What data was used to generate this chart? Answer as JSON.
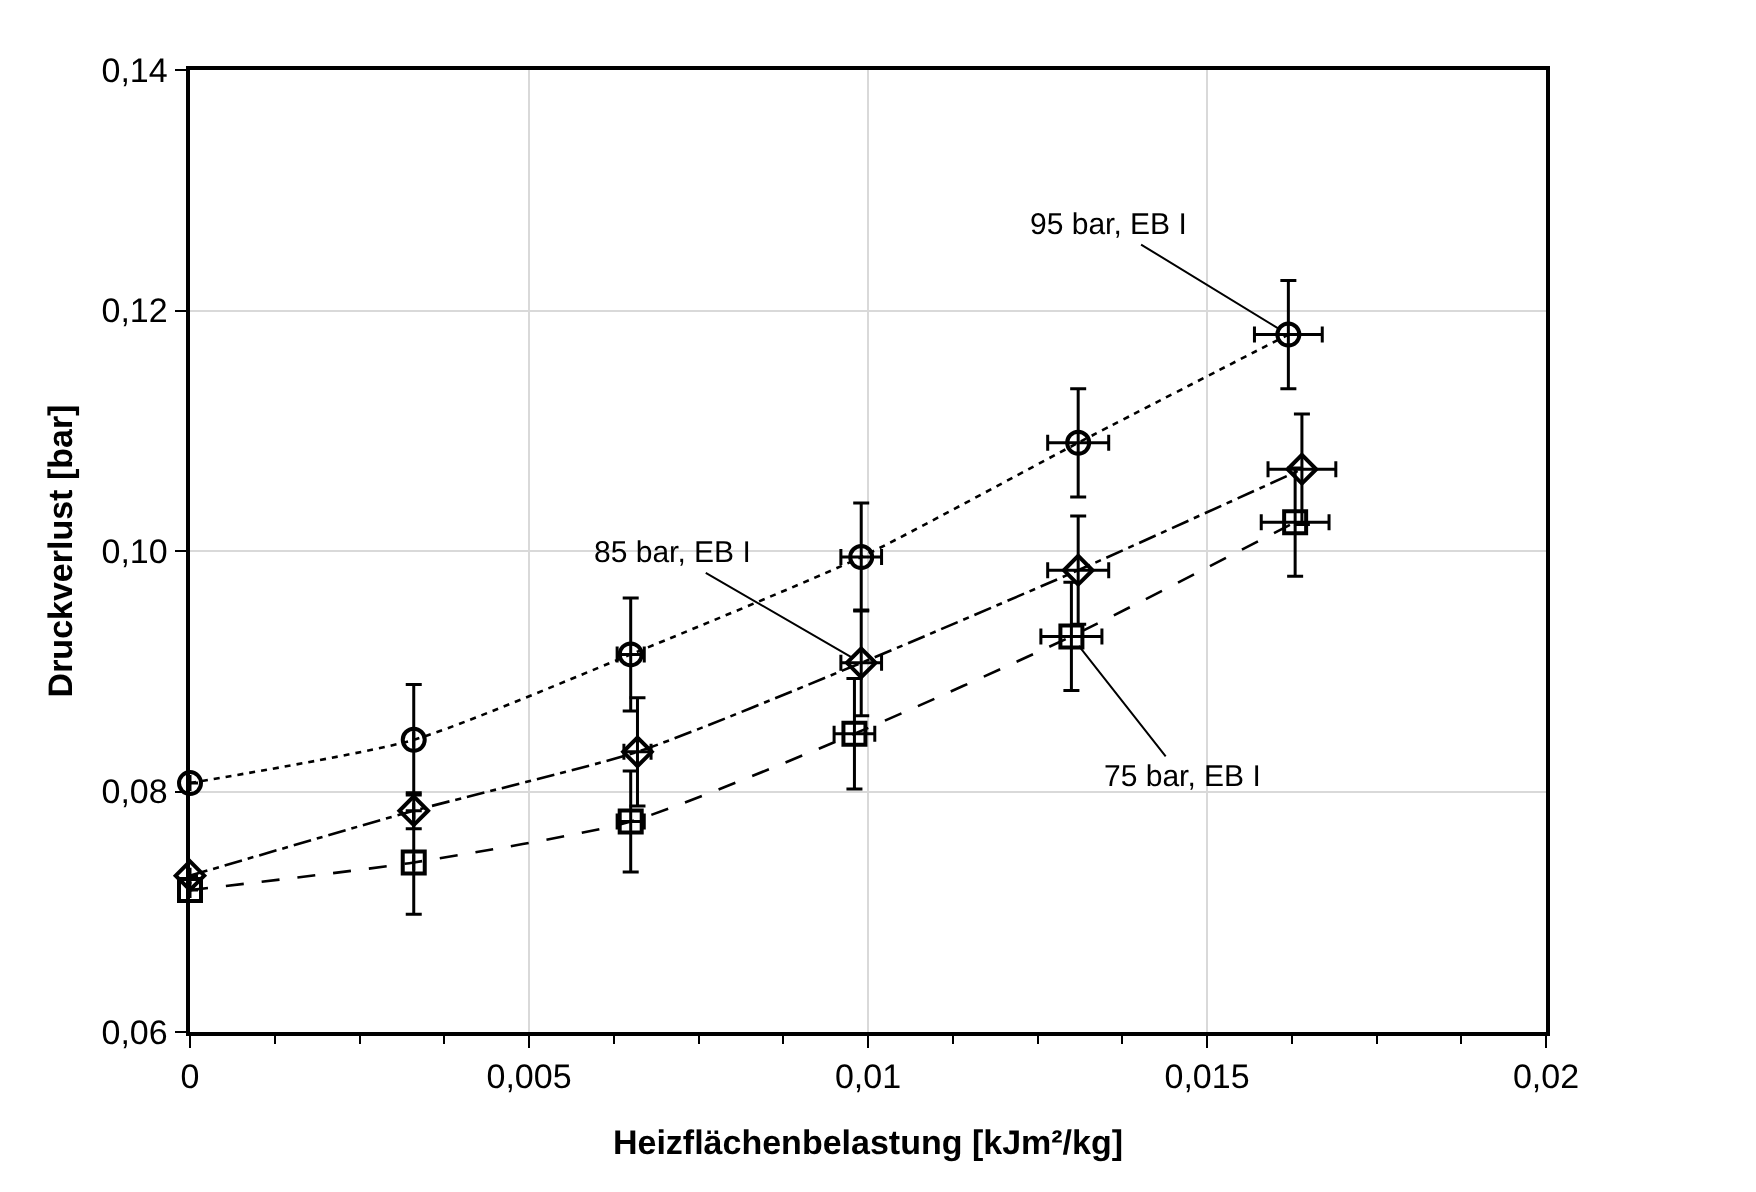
{
  "chart_data": {
    "type": "line",
    "xlabel": "Heizflächenbelastung [kJm²/kg]",
    "ylabel": "Druckverlust [bar]",
    "xlim": [
      0,
      0.02
    ],
    "ylim": [
      0.06,
      0.14
    ],
    "xticks": [
      {
        "value": 0,
        "label": "0"
      },
      {
        "value": 0.005,
        "label": "0,005"
      },
      {
        "value": 0.01,
        "label": "0,01"
      },
      {
        "value": 0.015,
        "label": "0,015"
      },
      {
        "value": 0.02,
        "label": "0,02"
      }
    ],
    "yticks": [
      {
        "value": 0.06,
        "label": "0,06"
      },
      {
        "value": 0.08,
        "label": "0,08"
      },
      {
        "value": 0.1,
        "label": "0,10"
      },
      {
        "value": 0.12,
        "label": "0,12"
      },
      {
        "value": 0.14,
        "label": "0,14"
      }
    ],
    "grid": true,
    "series": [
      {
        "color": "#000000",
        "marker": "circle",
        "line_style": "dotted",
        "x": [
          0,
          0.0033,
          0.0065,
          0.0099,
          0.0131,
          0.0162
        ],
        "values": [
          0.0807,
          0.0843,
          0.0914,
          0.0995,
          0.109,
          0.118
        ],
        "errors": [
          null,
          0.0046,
          0.0047,
          0.0045,
          0.0045,
          0.0045
        ],
        "xerrors": [
          null,
          null,
          0.0002,
          0.0003,
          0.00045,
          0.0005
        ]
      },
      {
        "color": "#000000",
        "marker": "diamond",
        "line_style": "dashdot",
        "x": [
          0,
          0.0033,
          0.0066,
          0.0099,
          0.0131,
          0.0164
        ],
        "values": [
          0.073,
          0.0784,
          0.0833,
          0.0907,
          0.0984,
          0.1068
        ],
        "errors": [
          null,
          0.0015,
          0.0045,
          0.0044,
          0.0045,
          0.0046
        ],
        "xerrors": [
          null,
          null,
          0.0002,
          0.0003,
          0.00045,
          0.0005
        ]
      },
      {
        "color": "#000000",
        "marker": "square",
        "line_style": "dashed",
        "x": [
          0,
          0.0033,
          0.0065,
          0.0098,
          0.013,
          0.0163
        ],
        "values": [
          0.0718,
          0.0741,
          0.0775,
          0.0848,
          0.0929,
          0.1024
        ],
        "errors": [
          null,
          0.0043,
          0.0042,
          0.0046,
          0.0045,
          0.0045
        ],
        "xerrors": [
          null,
          null,
          0.0002,
          0.0003,
          0.00045,
          0.0005
        ]
      }
    ],
    "annotations": [
      {
        "text": "95 bar, EB I",
        "x": 0.0162,
        "y": 0.118
      },
      {
        "text": "85 bar, EB I",
        "x": 0.0099,
        "y": 0.0907
      },
      {
        "text": "75 bar, EB I",
        "x": 0.013,
        "y": 0.0929
      }
    ]
  }
}
